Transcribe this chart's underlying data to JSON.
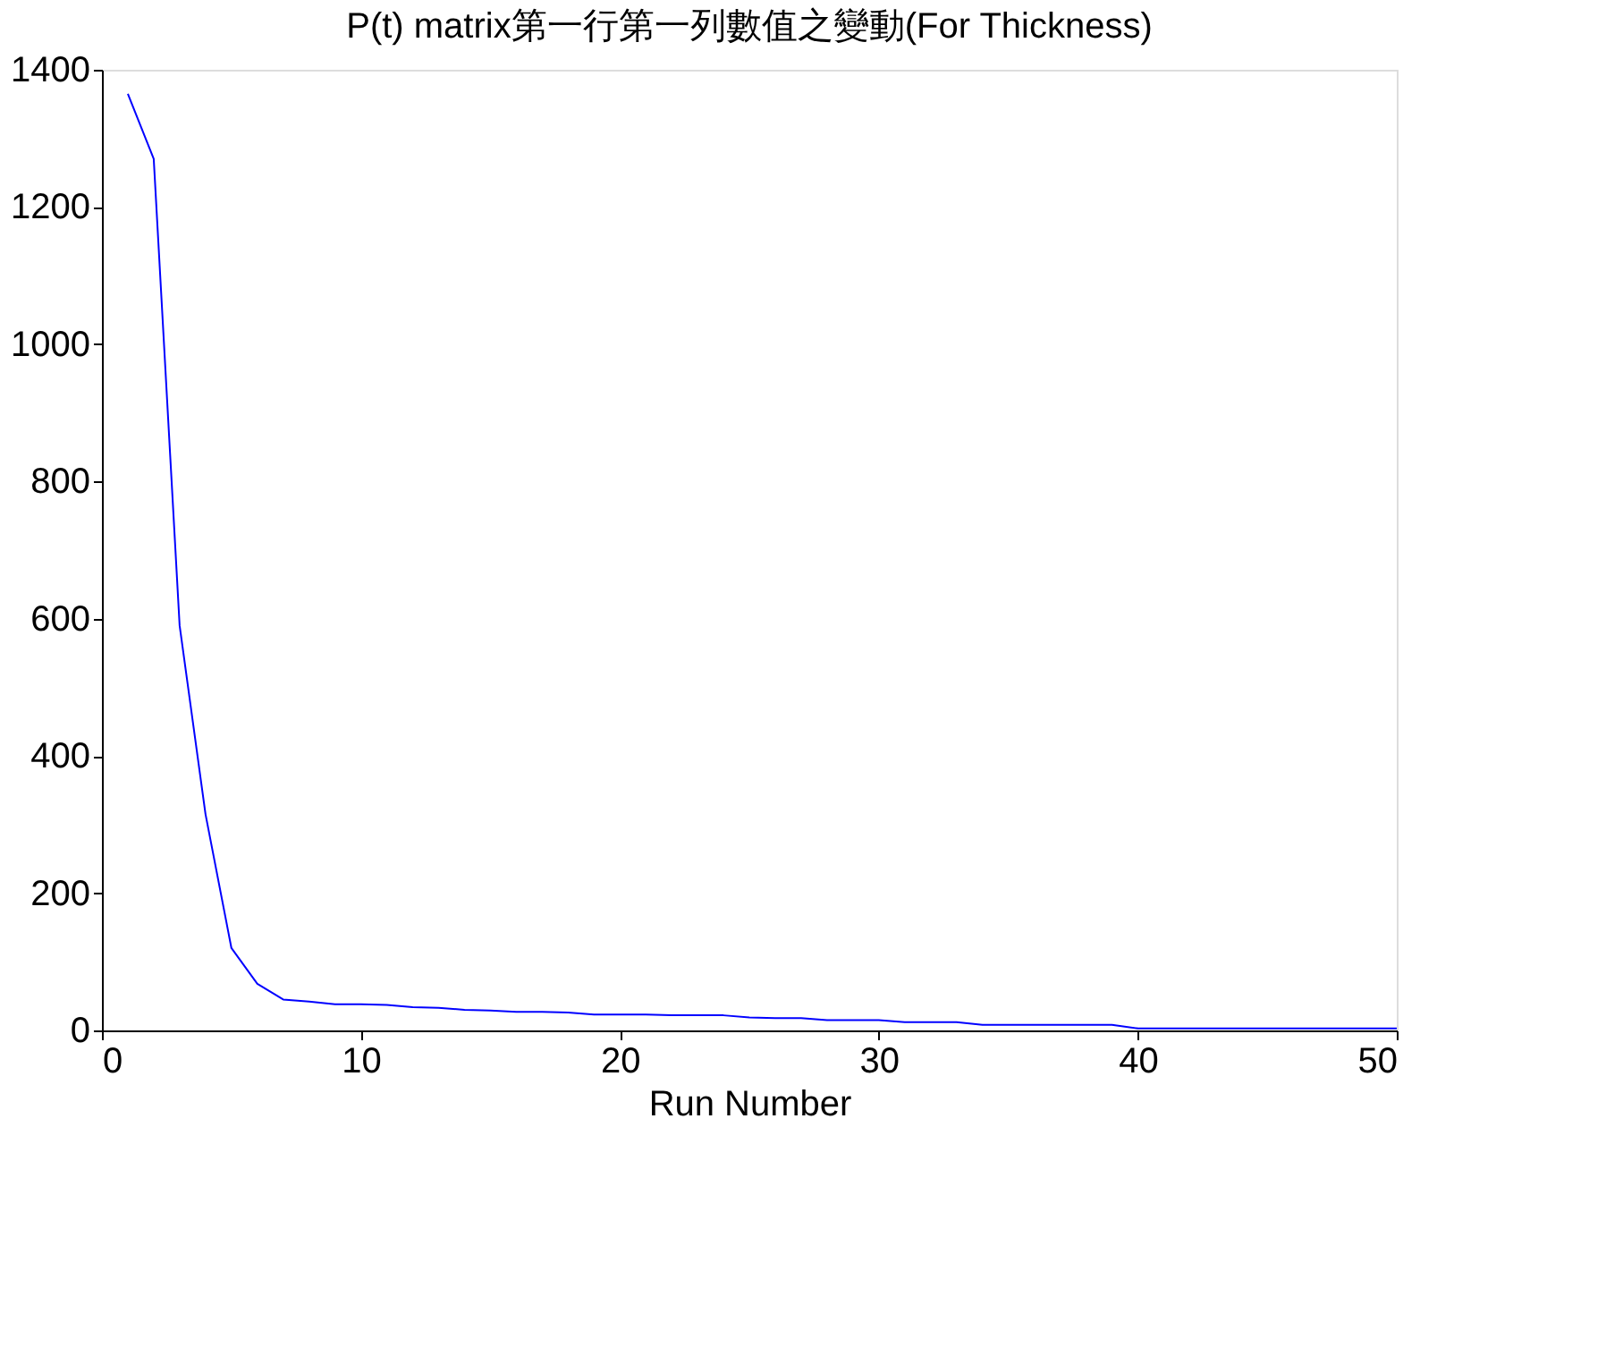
{
  "chart_data": {
    "type": "line",
    "title": "P(t) matrix第一行第一列數值之變動(For Thickness)",
    "xlabel": "Run Number",
    "x": [
      1,
      2,
      3,
      4,
      5,
      6,
      7,
      8,
      9,
      10,
      11,
      12,
      13,
      14,
      15,
      16,
      17,
      18,
      19,
      20,
      21,
      22,
      23,
      24,
      25,
      26,
      27,
      28,
      29,
      30,
      31,
      32,
      33,
      34,
      35,
      36,
      37,
      38,
      39,
      40,
      41,
      42,
      43,
      44,
      45,
      46,
      47,
      48,
      49,
      50
    ],
    "series": [
      {
        "color": "#0000ff",
        "values": [
          1365,
          1270,
          590,
          315,
          120,
          68,
          45,
          42,
          38,
          38,
          37,
          34,
          33,
          30,
          29,
          27,
          27,
          26,
          23,
          23,
          23,
          22,
          22,
          22,
          19,
          18,
          18,
          15,
          15,
          15,
          12,
          12,
          12,
          8,
          8,
          8,
          8,
          8,
          8,
          3,
          3,
          3,
          3,
          3,
          3,
          3,
          3,
          3,
          3,
          3
        ]
      }
    ],
    "xlim": [
      0,
      50
    ],
    "xticks": [
      0,
      10,
      20,
      30,
      40,
      50
    ],
    "ylim": [
      0,
      1400
    ],
    "yticks": [
      0,
      200,
      400,
      600,
      800,
      1000,
      1200,
      1400
    ],
    "grid": false,
    "legend": false,
    "marker": "none",
    "line_style": "solid"
  }
}
